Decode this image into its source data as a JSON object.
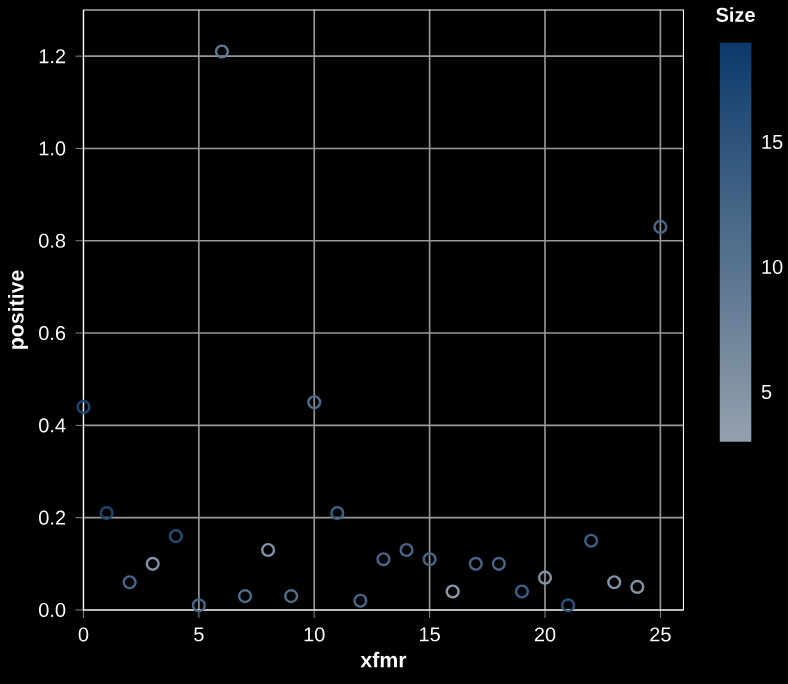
{
  "chart_data": {
    "type": "scatter",
    "xlabel": "xfmr",
    "ylabel": "positive",
    "clabel": "Size",
    "x": [
      0,
      1,
      2,
      3,
      4,
      5,
      6,
      7,
      8,
      9,
      10,
      11,
      12,
      13,
      14,
      15,
      16,
      17,
      18,
      19,
      20,
      21,
      22,
      23,
      24,
      25
    ],
    "values": [
      0.44,
      0.21,
      0.06,
      0.1,
      0.16,
      0.01,
      1.21,
      0.03,
      0.13,
      0.03,
      0.45,
      0.21,
      0.02,
      0.11,
      0.13,
      0.11,
      0.04,
      0.1,
      0.1,
      0.04,
      0.07,
      0.01,
      0.15,
      0.06,
      0.05,
      0.83
    ],
    "cvalues": [
      17,
      17,
      12,
      5,
      16,
      12,
      9,
      11,
      5,
      11,
      11,
      13,
      12,
      12,
      12,
      12,
      4,
      12,
      12,
      13,
      5,
      15,
      13,
      5,
      5,
      12
    ],
    "clim": [
      3,
      19
    ],
    "cticks": [
      5,
      10,
      15
    ],
    "xlim": [
      0,
      26
    ],
    "ylim": [
      0,
      1.3
    ],
    "xticks": [
      0,
      5,
      10,
      15,
      20,
      25
    ],
    "yticks": [
      {
        "value": 0,
        "label": "0.0"
      },
      {
        "value": 0.2,
        "label": "0.2"
      },
      {
        "value": 0.4,
        "label": "0.4"
      },
      {
        "value": 0.6,
        "label": "0.6"
      },
      {
        "value": 0.8,
        "label": "0.8"
      },
      {
        "value": 1.0,
        "label": "1.0"
      },
      {
        "value": 1.2,
        "label": "1.2"
      }
    ],
    "grid": true,
    "marker": "circle"
  }
}
